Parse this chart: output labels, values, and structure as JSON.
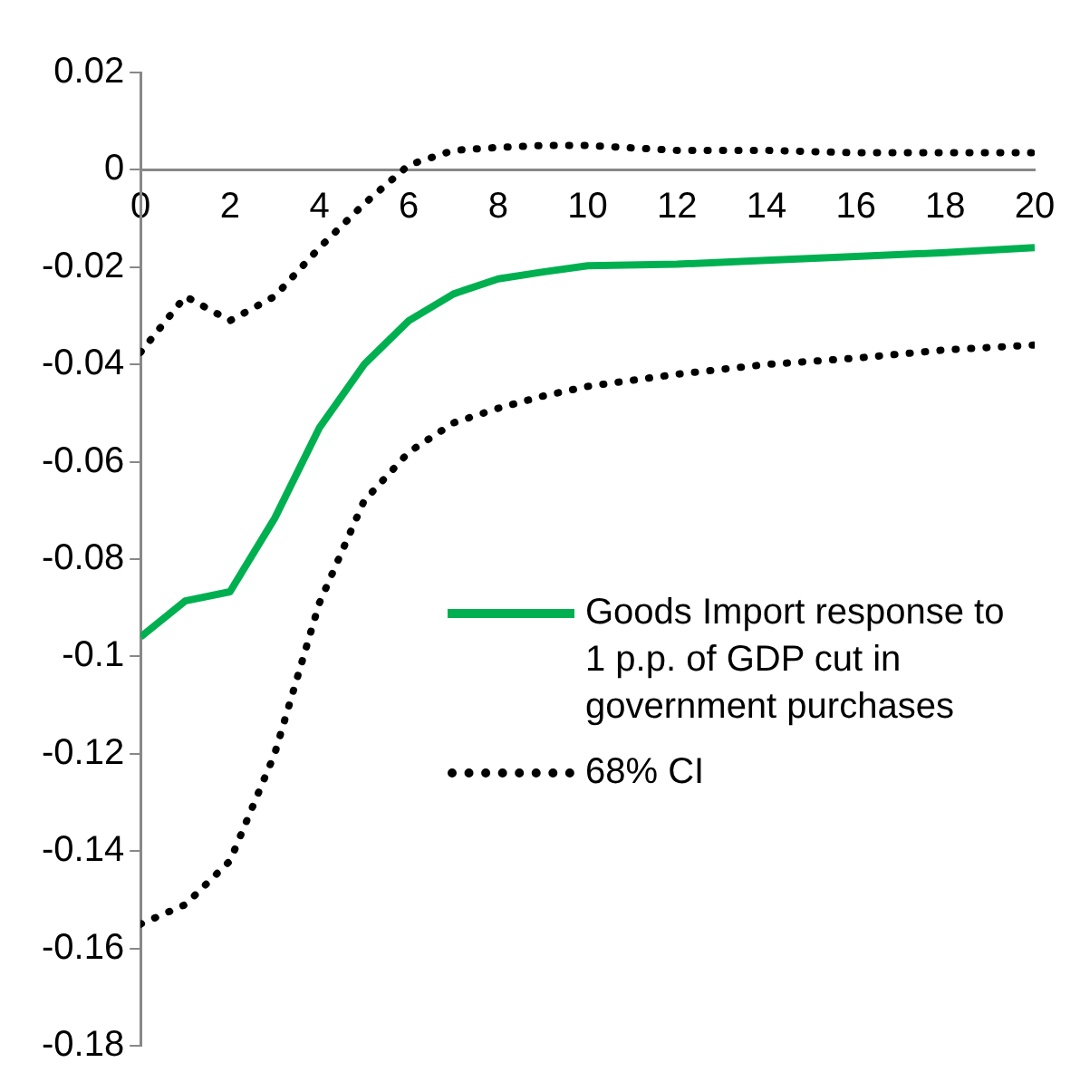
{
  "chart_data": {
    "type": "line",
    "x": [
      0,
      1,
      2,
      3,
      4,
      5,
      6,
      7,
      8,
      9,
      10,
      12,
      14,
      16,
      18,
      20
    ],
    "series": [
      {
        "name": "Goods Import response to 1 p.p. of GDP cut in government purchases",
        "color": "#00b050",
        "line_style": "solid",
        "values": [
          -0.096,
          -0.0886,
          -0.0867,
          -0.0716,
          -0.053,
          -0.04,
          -0.031,
          -0.0255,
          -0.0224,
          -0.021,
          -0.0197,
          -0.0194,
          -0.0186,
          -0.0178,
          -0.017,
          -0.016
        ]
      },
      {
        "name": "68% CI",
        "color": "#000000",
        "line_style": "dotted",
        "values": [
          -0.0375,
          -0.026,
          -0.031,
          -0.026,
          -0.016,
          -0.007,
          0.001,
          0.004,
          0.0046,
          0.005,
          0.005,
          0.004,
          0.004,
          0.0035,
          0.0035,
          0.0035
        ]
      },
      {
        "color": "#000000",
        "line_style": "dotted",
        "values": [
          -0.155,
          -0.151,
          -0.142,
          -0.12,
          -0.089,
          -0.068,
          -0.058,
          -0.052,
          -0.049,
          -0.0465,
          -0.0445,
          -0.042,
          -0.04,
          -0.0387,
          -0.037,
          -0.036
        ]
      }
    ],
    "xlim": [
      0,
      20
    ],
    "xticks": [
      0,
      2,
      4,
      6,
      8,
      10,
      12,
      14,
      16,
      18,
      20
    ],
    "ylim": [
      -0.18,
      0.02
    ],
    "yticks": [
      -0.18,
      -0.16,
      -0.14,
      -0.12,
      -0.1,
      -0.08,
      -0.06,
      -0.04,
      -0.02,
      0,
      0.02
    ],
    "grid": false,
    "legend": "right",
    "marker": "none"
  }
}
